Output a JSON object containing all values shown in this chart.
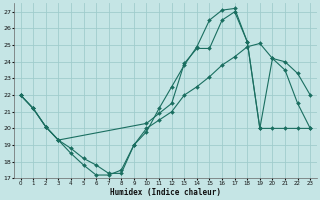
{
  "xlabel": "Humidex (Indice chaleur)",
  "bg_color": "#c5e5e5",
  "grid_color": "#a0cccc",
  "line_color": "#1a6e60",
  "xlim": [
    -0.5,
    23.5
  ],
  "ylim": [
    17,
    27.5
  ],
  "yticks": [
    17,
    18,
    19,
    20,
    21,
    22,
    23,
    24,
    25,
    26,
    27
  ],
  "xticks": [
    0,
    1,
    2,
    3,
    4,
    5,
    6,
    7,
    8,
    9,
    10,
    11,
    12,
    13,
    14,
    15,
    16,
    17,
    18,
    19,
    20,
    21,
    22,
    23
  ],
  "line1_x": [
    0,
    1,
    2,
    3,
    4,
    5,
    6,
    7,
    8,
    9,
    10,
    11,
    12,
    13,
    14,
    15,
    16,
    17,
    18,
    19,
    20,
    21,
    22,
    23
  ],
  "line1_y": [
    22.0,
    21.2,
    20.1,
    19.3,
    18.5,
    17.8,
    17.2,
    17.2,
    17.5,
    19.0,
    20.0,
    20.5,
    21.0,
    22.0,
    22.5,
    23.1,
    23.8,
    24.3,
    24.9,
    25.1,
    24.2,
    24.0,
    23.3,
    22.0
  ],
  "line2_x": [
    0,
    1,
    2,
    3,
    4,
    5,
    6,
    7,
    8,
    9,
    10,
    11,
    12,
    13,
    14,
    15,
    16,
    17,
    18,
    19,
    20,
    21,
    22,
    23
  ],
  "line2_y": [
    22.0,
    21.2,
    20.1,
    19.3,
    18.8,
    18.2,
    17.8,
    17.3,
    17.3,
    19.0,
    19.8,
    21.2,
    22.5,
    23.8,
    24.9,
    26.5,
    27.1,
    27.2,
    25.2,
    20.0,
    20.0,
    20.0,
    20.0,
    20.0
  ],
  "line3_x": [
    0,
    1,
    2,
    3,
    10,
    11,
    12,
    13,
    14,
    15,
    16,
    17,
    18,
    19,
    20,
    21,
    22,
    23
  ],
  "line3_y": [
    22.0,
    21.2,
    20.1,
    19.3,
    20.3,
    20.9,
    21.5,
    23.9,
    24.8,
    24.8,
    26.5,
    27.0,
    25.2,
    20.0,
    24.2,
    23.5,
    21.5,
    20.0
  ]
}
